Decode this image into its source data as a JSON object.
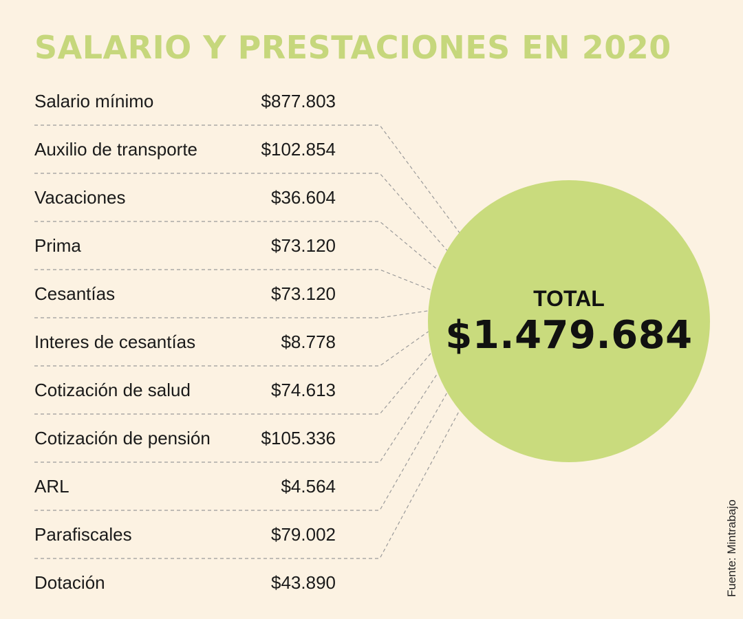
{
  "title": "SALARIO Y PRESTACIONES EN 2020",
  "items": [
    {
      "label": "Salario mínimo",
      "value": "$877.803"
    },
    {
      "label": "Auxilio de transporte",
      "value": "$102.854"
    },
    {
      "label": "Vacaciones",
      "value": "$36.604"
    },
    {
      "label": "Prima",
      "value": "$73.120"
    },
    {
      "label": "Cesantías",
      "value": "$73.120"
    },
    {
      "label": "Interes de cesantías",
      "value": "$8.778"
    },
    {
      "label": "Cotización de salud",
      "value": "$74.613"
    },
    {
      "label": "Cotización de pensión",
      "value": "$105.336"
    },
    {
      "label": "ARL",
      "value": "$4.564"
    },
    {
      "label": "Parafiscales",
      "value": "$79.002"
    },
    {
      "label": "Dotación",
      "value": "$43.890"
    }
  ],
  "total": {
    "label": "TOTAL",
    "value": "$1.479.684"
  },
  "source": "Fuente: Mintrabajo",
  "colors": {
    "background": "#fcf2e2",
    "accent": "#c6d77c",
    "circle": "#c9db7d",
    "line": "#9a9a9a"
  }
}
